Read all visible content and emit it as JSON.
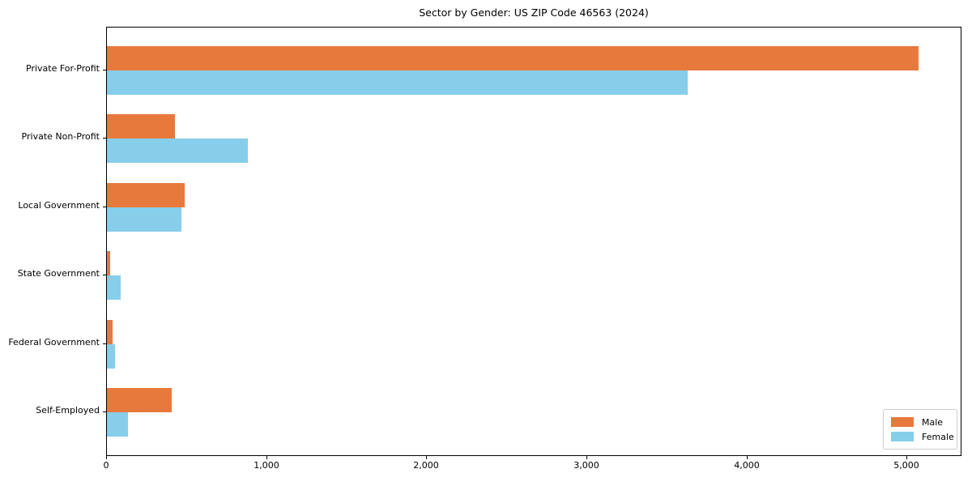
{
  "chart_data": {
    "type": "bar",
    "orientation": "horizontal",
    "title": "Sector by Gender: US ZIP Code 46563 (2024)",
    "categories": [
      "Private For-Profit",
      "Private Non-Profit",
      "Local Government",
      "State Government",
      "Federal Government",
      "Self-Employed"
    ],
    "series": [
      {
        "name": "Male",
        "color": "#E8793C",
        "values": [
          5070,
          425,
          485,
          20,
          35,
          405
        ]
      },
      {
        "name": "Female",
        "color": "#87CEEB",
        "values": [
          3630,
          880,
          465,
          85,
          50,
          130
        ]
      }
    ],
    "xlabel": "",
    "ylabel": "",
    "xlim": [
      0,
      5333
    ],
    "xticks": {
      "values": [
        0,
        1000,
        2000,
        3000,
        4000,
        5000
      ],
      "labels": [
        "0",
        "1,000",
        "2,000",
        "3,000",
        "4,000",
        "5,000"
      ]
    },
    "grid": false,
    "legend_position": "lower right"
  }
}
